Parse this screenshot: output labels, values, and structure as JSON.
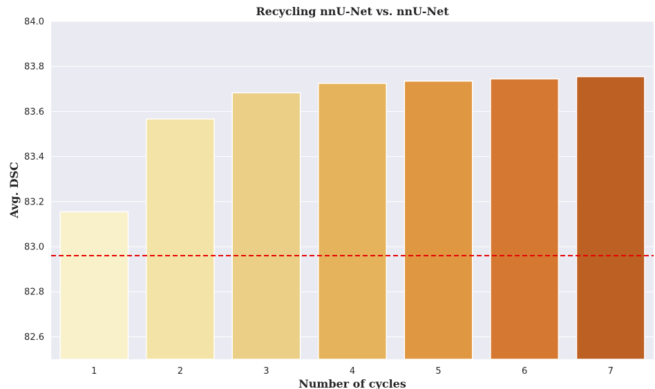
{
  "chart_data": {
    "type": "bar",
    "title": "Recycling nnU-Net vs. nnU-Net",
    "xlabel": "Number of cycles",
    "ylabel": "Avg. DSC",
    "categories": [
      "1",
      "2",
      "3",
      "4",
      "5",
      "6",
      "7"
    ],
    "values": [
      83.155,
      83.567,
      83.683,
      83.725,
      83.735,
      83.745,
      83.755
    ],
    "ylim": [
      82.5,
      84.0
    ],
    "yticks": [
      "82.6",
      "82.8",
      "83.0",
      "83.2",
      "83.4",
      "83.6",
      "83.8",
      "84.0"
    ],
    "baseline": 82.96,
    "baseline_color": "#e60000",
    "bar_colors": [
      "#f8f1c9",
      "#f4e3a7",
      "#ebcf86",
      "#e5b35c",
      "#e09741",
      "#d57932",
      "#bc6024"
    ],
    "background_color": "#eaeaf2",
    "grid": true
  }
}
